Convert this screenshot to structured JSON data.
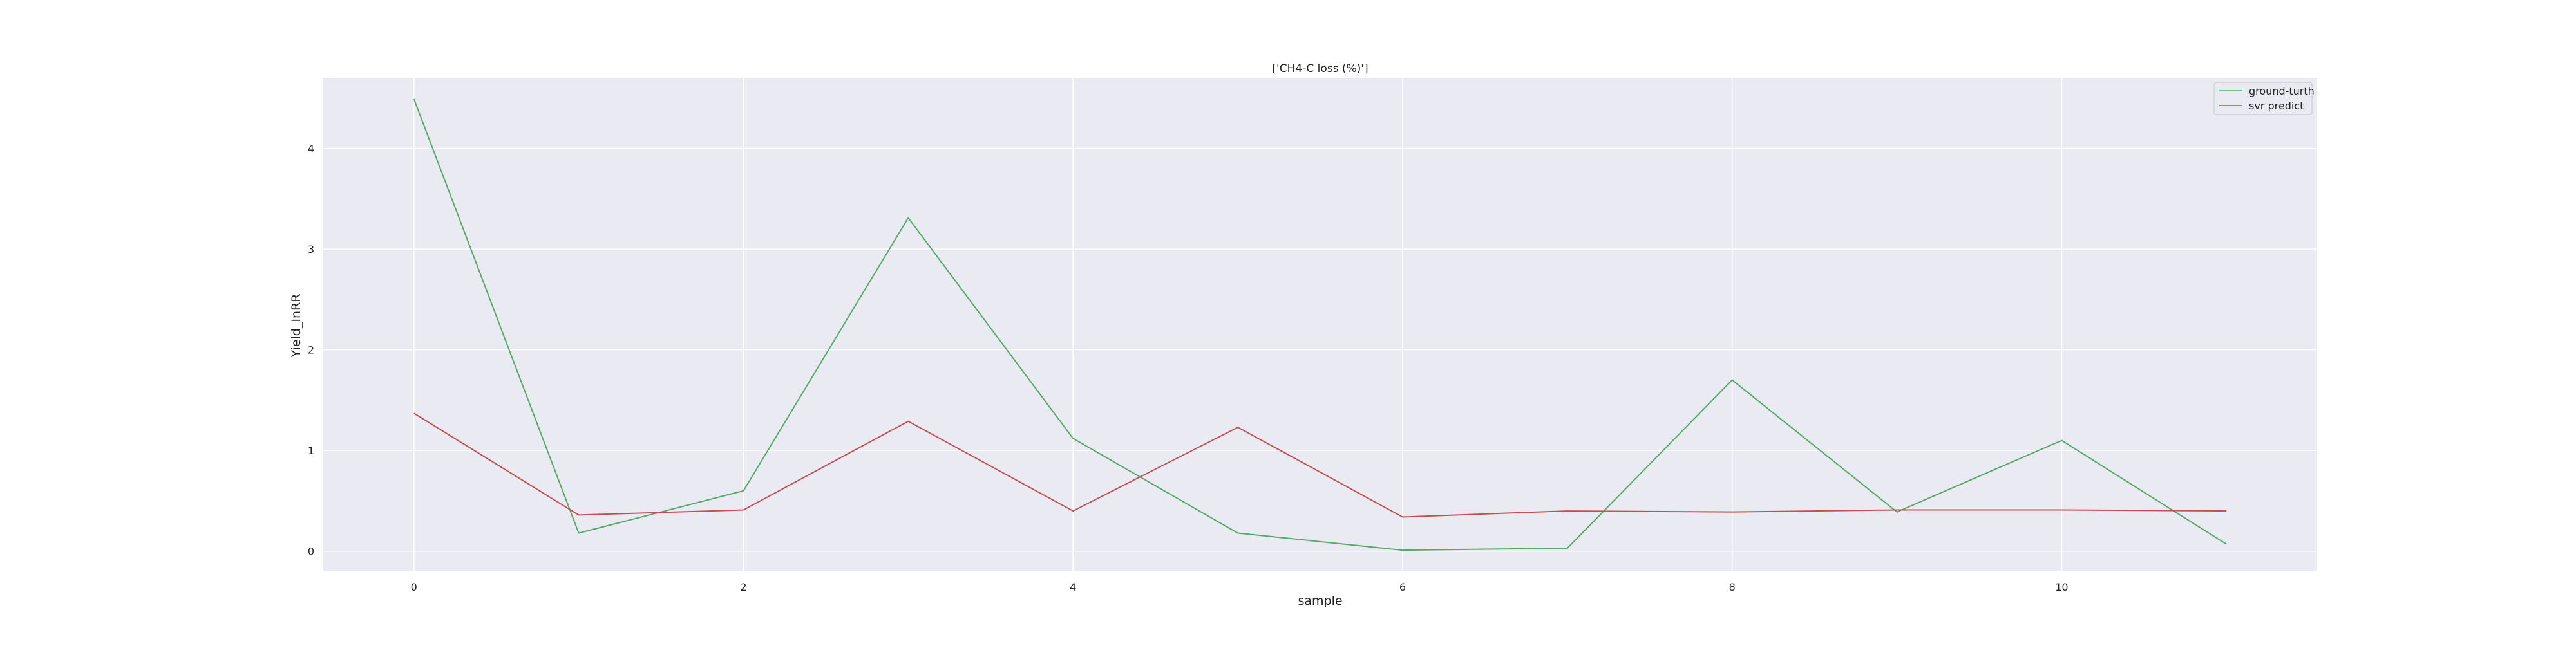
{
  "chart_data": {
    "type": "line",
    "title": "['CH4-C loss (%)']",
    "xlabel": "sample",
    "ylabel": "Yield_InRR",
    "x": [
      0,
      1,
      2,
      3,
      4,
      5,
      6,
      7,
      8,
      9,
      10,
      11
    ],
    "xlim": [
      -0.55,
      11.55
    ],
    "ylim": [
      -0.2,
      4.7
    ],
    "xticks": [
      0,
      2,
      4,
      6,
      8,
      10
    ],
    "yticks": [
      0,
      1,
      2,
      3,
      4
    ],
    "grid": true,
    "legend_position": "top-right",
    "series": [
      {
        "name": "ground-turth",
        "color": "#55a868",
        "values": [
          4.49,
          0.18,
          0.6,
          3.31,
          1.12,
          0.18,
          0.01,
          0.03,
          1.7,
          0.39,
          1.1,
          0.07
        ]
      },
      {
        "name": "svr predict",
        "color": "#c44e52",
        "values": [
          1.37,
          0.36,
          0.41,
          1.29,
          0.4,
          1.23,
          0.34,
          0.4,
          0.39,
          0.41,
          0.41,
          0.4
        ]
      }
    ]
  },
  "colors": {
    "plot_background": "#eaeaf2",
    "grid": "#ffffff",
    "text": "#222222"
  }
}
